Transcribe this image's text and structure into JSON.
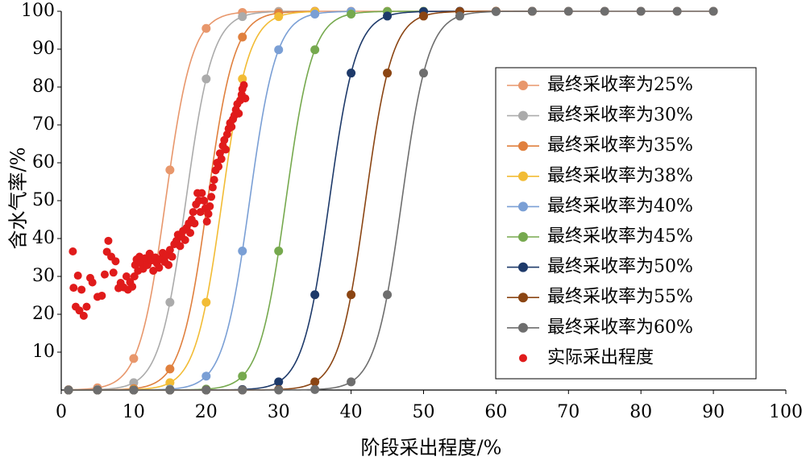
{
  "chart_data": {
    "type": "line",
    "title": "",
    "xlabel": "阶段采出程度/%",
    "ylabel": "含水气率/%",
    "xlim": [
      0,
      100
    ],
    "ylim": [
      0,
      100
    ],
    "x_ticks": [
      "0",
      "10",
      "20",
      "30",
      "40",
      "50",
      "60",
      "70",
      "80",
      "90",
      "100"
    ],
    "y_ticks": [
      "10",
      "20",
      "30",
      "40",
      "50",
      "60",
      "70",
      "80",
      "90",
      "100"
    ],
    "legend_position": "right",
    "curve_x": [
      1,
      5,
      10,
      15,
      20,
      25,
      30,
      35,
      40,
      45,
      50,
      55,
      60,
      65,
      70,
      75,
      80,
      85,
      90
    ],
    "series": [
      {
        "name": "最终采收率为25%",
        "color": "#E8976C",
        "xmax": 90,
        "x0": 14.4,
        "k": 0.545
      },
      {
        "name": "最终采收率为30%",
        "color": "#ABABAB",
        "xmax": 35,
        "x0": 17.2,
        "k": 0.545
      },
      {
        "name": "最终采收率为35%",
        "color": "#E0803E",
        "xmax": 35,
        "x0": 20.2,
        "k": 0.545
      },
      {
        "name": "最终采收率为38%",
        "color": "#F2BC35",
        "xmax": 35,
        "x0": 22.2,
        "k": 0.545
      },
      {
        "name": "最终采收率为40%",
        "color": "#7A9FD5",
        "xmax": 40,
        "x0": 26.0,
        "k": 0.545
      },
      {
        "name": "最终采收率为45%",
        "color": "#76A94E",
        "xmax": 50,
        "x0": 31.0,
        "k": 0.545
      },
      {
        "name": "最终采收率为50%",
        "color": "#1E3A6A",
        "xmax": 55,
        "x0": 37.0,
        "k": 0.545
      },
      {
        "name": "最终采收率为55%",
        "color": "#8B4513",
        "xmax": 65,
        "x0": 42.0,
        "k": 0.545
      },
      {
        "name": "最终采收率为60%",
        "color": "#6E6E6E",
        "xmax": 90,
        "x0": 47.0,
        "k": 0.545
      }
    ],
    "actual": {
      "name": "实际采出程度",
      "color": "#E01B1B",
      "points": [
        [
          1.6,
          36.6
        ],
        [
          1.7,
          27.0
        ],
        [
          2.0,
          22.0
        ],
        [
          2.3,
          30.2
        ],
        [
          2.5,
          21.0
        ],
        [
          2.8,
          26.5
        ],
        [
          3.1,
          19.6
        ],
        [
          3.5,
          22.0
        ],
        [
          4.0,
          29.6
        ],
        [
          4.3,
          28.4
        ],
        [
          5.0,
          24.6
        ],
        [
          5.6,
          24.9
        ],
        [
          6.0,
          30.5
        ],
        [
          6.3,
          36.5
        ],
        [
          6.5,
          39.4
        ],
        [
          6.9,
          35.2
        ],
        [
          7.2,
          31.0
        ],
        [
          7.5,
          34.0
        ],
        [
          7.9,
          26.9
        ],
        [
          8.2,
          28.3
        ],
        [
          8.6,
          27.1
        ],
        [
          9.0,
          30.0
        ],
        [
          9.2,
          26.5
        ],
        [
          9.5,
          28.5
        ],
        [
          9.8,
          27.3
        ],
        [
          10.1,
          30.0
        ],
        [
          10.2,
          33.0
        ],
        [
          10.4,
          34.5
        ],
        [
          10.6,
          31.5
        ],
        [
          10.8,
          35.2
        ],
        [
          11.0,
          33.5
        ],
        [
          11.3,
          32.0
        ],
        [
          11.6,
          34.8
        ],
        [
          11.9,
          33.0
        ],
        [
          12.2,
          36.0
        ],
        [
          12.4,
          34.2
        ],
        [
          12.7,
          31.5
        ],
        [
          13.0,
          35.0
        ],
        [
          13.2,
          33.5
        ],
        [
          13.5,
          32.3
        ],
        [
          13.7,
          34.6
        ],
        [
          14.0,
          36.2
        ],
        [
          14.3,
          33.8
        ],
        [
          14.5,
          35.5
        ],
        [
          14.8,
          33.0
        ],
        [
          15.0,
          37.0
        ],
        [
          15.3,
          35.2
        ],
        [
          15.6,
          38.5
        ],
        [
          15.9,
          39.4
        ],
        [
          16.1,
          41.0
        ],
        [
          16.4,
          38.0
        ],
        [
          16.6,
          40.5
        ],
        [
          16.8,
          42.0
        ],
        [
          17.1,
          39.6
        ],
        [
          17.3,
          42.8
        ],
        [
          17.6,
          44.0
        ],
        [
          17.8,
          41.5
        ],
        [
          18.0,
          45.0
        ],
        [
          18.2,
          47.0
        ],
        [
          18.4,
          44.0
        ],
        [
          18.6,
          49.0
        ],
        [
          18.8,
          52.0
        ],
        [
          19.0,
          50.0
        ],
        [
          19.2,
          47.0
        ],
        [
          19.4,
          52.0
        ],
        [
          19.7,
          50.0
        ],
        [
          19.9,
          48.0
        ],
        [
          20.1,
          44.5
        ],
        [
          20.3,
          46.5
        ],
        [
          20.5,
          48.5
        ],
        [
          20.7,
          51.0
        ],
        [
          20.9,
          53.5
        ],
        [
          21.1,
          55.5
        ],
        [
          21.3,
          58.0
        ],
        [
          21.5,
          60.0
        ],
        [
          21.7,
          59.0
        ],
        [
          21.9,
          62.5
        ],
        [
          22.1,
          61.0
        ],
        [
          22.3,
          64.5
        ],
        [
          22.5,
          66.0
        ],
        [
          22.7,
          63.5
        ],
        [
          22.9,
          67.5
        ],
        [
          23.1,
          69.0
        ],
        [
          23.3,
          70.5
        ],
        [
          23.5,
          69.5
        ],
        [
          23.7,
          71.5
        ],
        [
          23.9,
          72.5
        ],
        [
          24.1,
          74.0
        ],
        [
          24.3,
          75.5
        ],
        [
          24.5,
          73.0
        ],
        [
          24.7,
          76.5
        ],
        [
          24.9,
          78.0
        ],
        [
          25.0,
          79.5
        ],
        [
          25.2,
          80.5
        ],
        [
          25.4,
          77.0
        ]
      ]
    }
  }
}
